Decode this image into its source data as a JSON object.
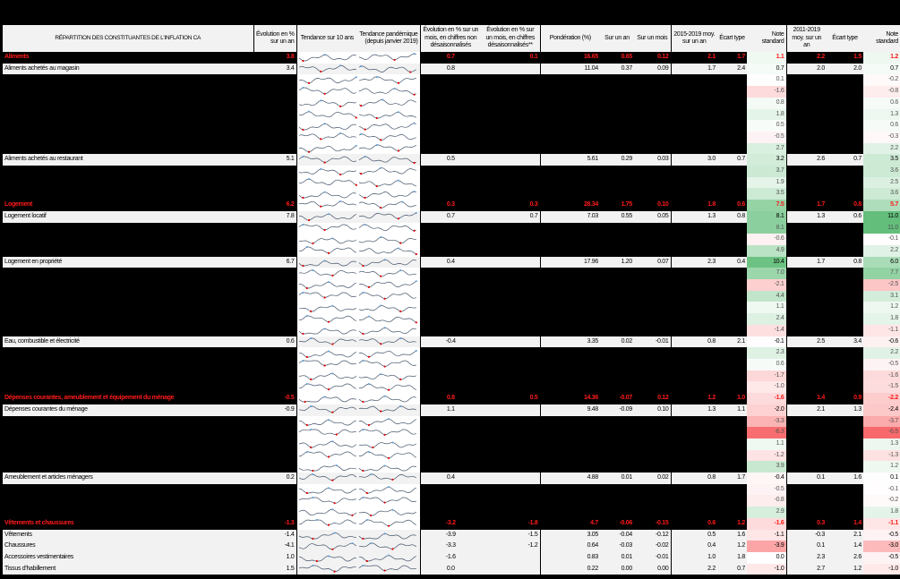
{
  "header": {
    "title": "RÉPARTITION DES CONSTITUANTES DE L'INFLATION CA",
    "yoy": "Évolution en % sur un an",
    "trend10": "Tendance sur 10 ans",
    "trendPandemic": "Tendance pandémique (depuis janvier 2019)",
    "momNsa": "Évolution en % sur un mois, en chiffres non désaisonnalisés",
    "momSa": "Évolution en % sur un mois, en chiffres désaisonnalisés**",
    "weight": "Pondération (%)",
    "contribYoy": "Sur un an",
    "contribMom": "Sur un mois",
    "avg1519": "2015-2019 moy. sur un an",
    "sd1519": "Écart type",
    "z1519": "Note standard",
    "avg1119": "2011-2019 moy. sur un an",
    "sd1119": "Écart type",
    "z1119": "Note standard"
  },
  "colors": {
    "category_text": "#ff1a1a",
    "sparkline": "#44546a",
    "sparkline_low": "#e00000",
    "sparkline_high": "#5b9bd5",
    "positive_strong": "#63be7b",
    "negative_strong": "#f8696b"
  },
  "rows": [
    {
      "type": "cat",
      "label": "Aliments",
      "yoy": "3.8",
      "momNsa": "0.7",
      "momSa": "0.1",
      "weight": "16.65",
      "cy": "0.65",
      "cm": "0.12",
      "a1": "2.1",
      "s1": "1.7",
      "z1": "1.1",
      "a2": "2.2",
      "s2": "1.5",
      "z2": "1.2"
    },
    {
      "type": "sub",
      "label": "Aliments achetés au magasin",
      "yoy": "3.4",
      "momNsa": "0.8",
      "momSa": "",
      "weight": "11.04",
      "cy": "0.37",
      "cm": "0.09",
      "a1": "1.7",
      "s1": "2.4",
      "z1": "0.7",
      "a2": "2.0",
      "s2": "2.0",
      "z2": "0.7"
    },
    {
      "type": "hid",
      "z1": "0.1",
      "z2": "-0.2"
    },
    {
      "type": "hid",
      "z1": "-1.6",
      "z2": "-0.8"
    },
    {
      "type": "hid",
      "z1": "0.8",
      "z2": "0.6"
    },
    {
      "type": "hid",
      "z1": "1.8",
      "z2": "1.3"
    },
    {
      "type": "hid",
      "z1": "0.5",
      "z2": "0.6"
    },
    {
      "type": "hid",
      "z1": "-0.5",
      "z2": "-0.3"
    },
    {
      "type": "hid",
      "z1": "2.7",
      "z2": "2.2"
    },
    {
      "type": "sub",
      "label": "Aliments achetés au restaurant",
      "yoy": "5.1",
      "momNsa": "0.5",
      "momSa": "",
      "weight": "5.61",
      "cy": "0.29",
      "cm": "0.03",
      "a1": "3.0",
      "s1": "0.7",
      "z1": "3.2",
      "a2": "2.6",
      "s2": "0.7",
      "z2": "3.5"
    },
    {
      "type": "hid",
      "z1": "3.7",
      "z2": "3.6"
    },
    {
      "type": "hid",
      "z1": "1.9",
      "z2": "2.5"
    },
    {
      "type": "hid",
      "z1": "3.5",
      "z2": "3.6"
    },
    {
      "type": "cat",
      "label": "Logement",
      "yoy": "6.2",
      "momNsa": "0.3",
      "momSa": "0.3",
      "weight": "28.34",
      "cy": "1.75",
      "cm": "0.10",
      "a1": "1.8",
      "s1": "0.6",
      "z1": "7.5",
      "a2": "1.7",
      "s2": "0.8",
      "z2": "5.7"
    },
    {
      "type": "sub",
      "label": "Logement locatif",
      "yoy": "7.8",
      "momNsa": "0.7",
      "momSa": "0.7",
      "weight": "7.03",
      "cy": "0.55",
      "cm": "0.05",
      "a1": "1.3",
      "s1": "0.8",
      "z1": "8.1",
      "a2": "1.3",
      "s2": "0.6",
      "z2": "11.0"
    },
    {
      "type": "hid",
      "z1": "8.1",
      "z2": "11.0"
    },
    {
      "type": "hid",
      "z1": "-0.6",
      "z2": "-0.1"
    },
    {
      "type": "hid",
      "z1": "4.9",
      "z2": "2.2"
    },
    {
      "type": "sub",
      "label": "Logement en propriété",
      "yoy": "6.7",
      "momNsa": "0.4",
      "momSa": "",
      "weight": "17.96",
      "cy": "1.20",
      "cm": "0.07",
      "a1": "2.3",
      "s1": "0.4",
      "z1": "10.4",
      "a2": "1.7",
      "s2": "0.8",
      "z2": "6.0"
    },
    {
      "type": "hid",
      "z1": "7.0",
      "z2": "7.7"
    },
    {
      "type": "hid",
      "z1": "-2.1",
      "z2": "-2.5"
    },
    {
      "type": "hid",
      "z1": "4.4",
      "z2": "3.1"
    },
    {
      "type": "hid",
      "z1": "1.1",
      "z2": "1.2"
    },
    {
      "type": "hid",
      "z1": "2.4",
      "z2": "1.8"
    },
    {
      "type": "hid",
      "z1": "-1.4",
      "z2": "-1.1"
    },
    {
      "type": "sub",
      "label": "Eau, combustible et électricité",
      "yoy": "0.6",
      "momNsa": "-0.4",
      "momSa": "",
      "weight": "3.35",
      "cy": "0.02",
      "cm": "-0.01",
      "a1": "0.8",
      "s1": "2.1",
      "z1": "-0.1",
      "a2": "2.5",
      "s2": "3.4",
      "z2": "-0.6"
    },
    {
      "type": "hid",
      "z1": "2.3",
      "z2": "2.2"
    },
    {
      "type": "hid",
      "z1": "0.6",
      "z2": "-0.5"
    },
    {
      "type": "hid",
      "z1": "-1.7",
      "z2": "-1.6"
    },
    {
      "type": "hid",
      "z1": "-1.0",
      "z2": "-1.5"
    },
    {
      "type": "cat",
      "label": "Dépenses courantes, ameublement et équipement du ménage",
      "yoy": "-0.5",
      "momNsa": "0.8",
      "momSa": "0.5",
      "weight": "14.36",
      "cy": "-0.07",
      "cm": "0.12",
      "a1": "1.2",
      "s1": "1.0",
      "z1": "-1.6",
      "a2": "1.4",
      "s2": "0.9",
      "z2": "-2.2"
    },
    {
      "type": "sub",
      "label": "Dépenses courantes du ménage",
      "yoy": "-0.9",
      "momNsa": "1.1",
      "momSa": "",
      "weight": "9.48",
      "cy": "-0.09",
      "cm": "0.10",
      "a1": "1.3",
      "s1": "1.1",
      "z1": "-2.0",
      "a2": "2.1",
      "s2": "1.3",
      "z2": "-2.4"
    },
    {
      "type": "hid",
      "z1": "-3.3",
      "z2": "-3.7"
    },
    {
      "type": "hid",
      "z1": "-6.3",
      "z2": "-6.5"
    },
    {
      "type": "hid",
      "z1": "1.1",
      "z2": "1.3"
    },
    {
      "type": "hid",
      "z1": "-1.2",
      "z2": "-1.3"
    },
    {
      "type": "hid",
      "z1": "3.9",
      "z2": "1.2"
    },
    {
      "type": "sub",
      "label": "Ameublement et articles ménagers",
      "yoy": "0.2",
      "momNsa": "0.4",
      "momSa": "",
      "weight": "4.88",
      "cy": "0.01",
      "cm": "0.02",
      "a1": "0.8",
      "s1": "1.7",
      "z1": "-0.4",
      "a2": "0.1",
      "s2": "1.6",
      "z2": "0.1"
    },
    {
      "type": "hid",
      "z1": "-0.5",
      "z2": "-0.1"
    },
    {
      "type": "hid",
      "z1": "-0.8",
      "z2": "-0.2"
    },
    {
      "type": "hid",
      "z1": "2.9",
      "z2": "1.8"
    },
    {
      "type": "cat",
      "label": "Vêtements et chaussures",
      "yoy": "-1.3",
      "momNsa": "-3.2",
      "momSa": "-1.8",
      "weight": "4.7",
      "cy": "-0.06",
      "cm": "-0.15",
      "a1": "0.6",
      "s1": "1.2",
      "z1": "-1.6",
      "a2": "0.3",
      "s2": "1.4",
      "z2": "-1.1"
    },
    {
      "type": "sub",
      "label": "Vêtements",
      "yoy": "-1.4",
      "momNsa": "-3.9",
      "momSa": "-1.5",
      "weight": "3.05",
      "cy": "-0.04",
      "cm": "-0.12",
      "a1": "0.5",
      "s1": "1.6",
      "z1": "-1.1",
      "a2": "-0.3",
      "s2": "2.1",
      "z2": "-0.5"
    },
    {
      "type": "sub",
      "label": "Chaussures",
      "yoy": "-4.1",
      "momNsa": "-3.3",
      "momSa": "-1.2",
      "weight": "0.64",
      "cy": "-0.03",
      "cm": "-0.02",
      "a1": "0.4",
      "s1": "1.2",
      "z1": "-3.9",
      "a2": "0.1",
      "s2": "1.4",
      "z2": "-3.0"
    },
    {
      "type": "sub",
      "label": "Accessoires vestimentaires",
      "yoy": "1.0",
      "momNsa": "-1.6",
      "momSa": "",
      "weight": "0.83",
      "cy": "0.01",
      "cm": "-0.01",
      "a1": "1.0",
      "s1": "1.8",
      "z1": "0.0",
      "a2": "2.3",
      "s2": "2.6",
      "z2": "-0.5"
    },
    {
      "type": "sub",
      "label": "Tissus d'habillement",
      "yoy": "1.5",
      "momNsa": "0.0",
      "momSa": "",
      "weight": "0.22",
      "cy": "0.00",
      "cm": "0.00",
      "a1": "2.2",
      "s1": "0.7",
      "z1": "-1.0",
      "a2": "2.7",
      "s2": "1.2",
      "z2": "-1.0"
    }
  ]
}
